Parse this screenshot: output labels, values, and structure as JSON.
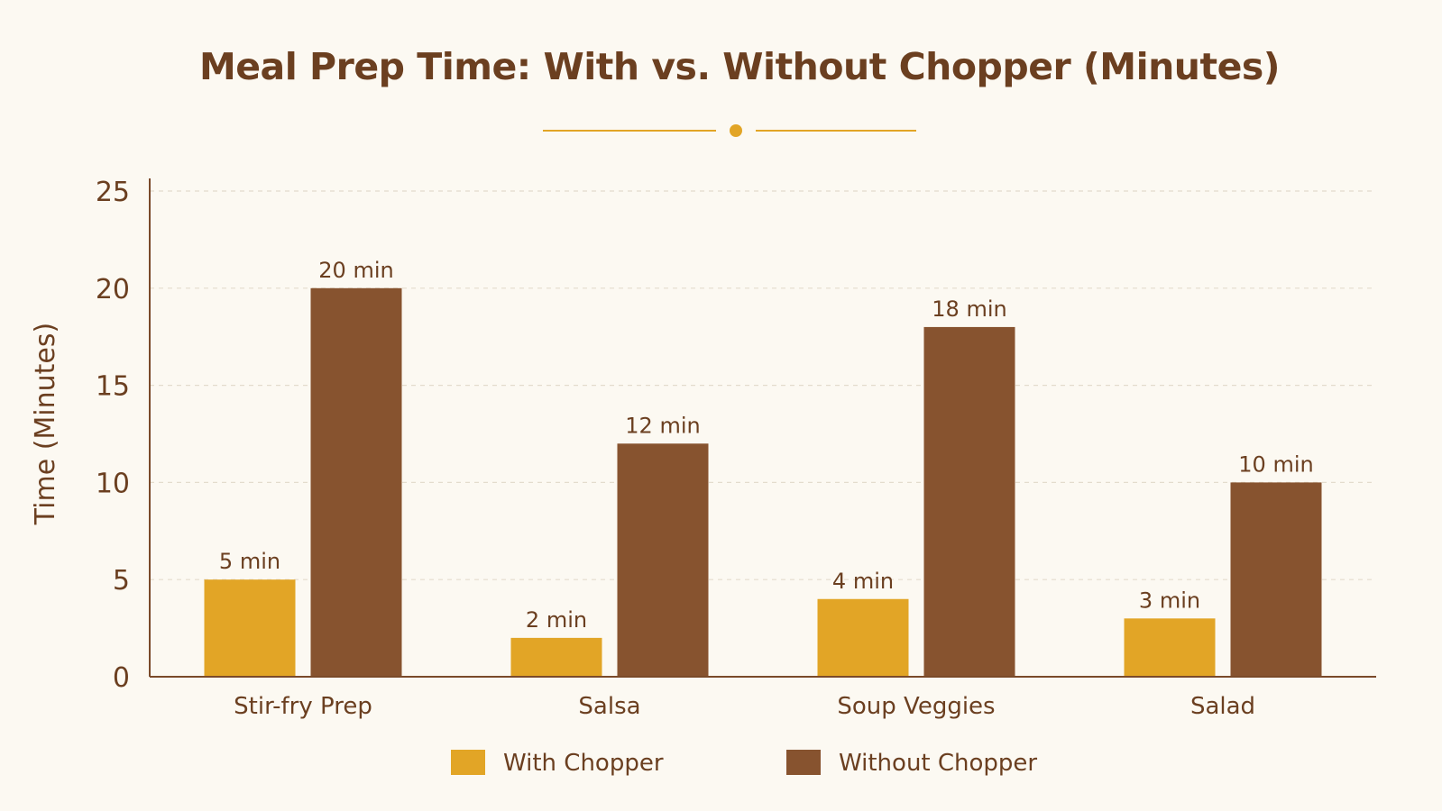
{
  "chart_data": {
    "type": "bar",
    "title": "Meal Prep Time: With vs. Without Chopper (Minutes)",
    "xlabel": "",
    "ylabel": "Time (Minutes)",
    "categories": [
      "Stir-fry Prep",
      "Salsa",
      "Soup Veggies",
      "Salad"
    ],
    "series": [
      {
        "name": "With Chopper",
        "color": "#e2a526",
        "values": [
          5,
          2,
          4,
          3
        ],
        "labels": [
          "5 min",
          "2 min",
          "4 min",
          "3 min"
        ]
      },
      {
        "name": "Without Chopper",
        "color": "#87532f",
        "values": [
          20,
          12,
          18,
          10
        ],
        "labels": [
          "20 min",
          "12 min",
          "18 min",
          "10 min"
        ]
      }
    ],
    "ylim": [
      0,
      25
    ],
    "yticks": [
      "0",
      "5",
      "10",
      "15",
      "20",
      "25"
    ],
    "grid": true,
    "legend_position": "bottom"
  },
  "colors": {
    "background": "#fcf9f2",
    "text": "#6b3f20",
    "accent": "#e2a526",
    "axis": "#7a4a2a",
    "grid": "#e3dccd"
  }
}
